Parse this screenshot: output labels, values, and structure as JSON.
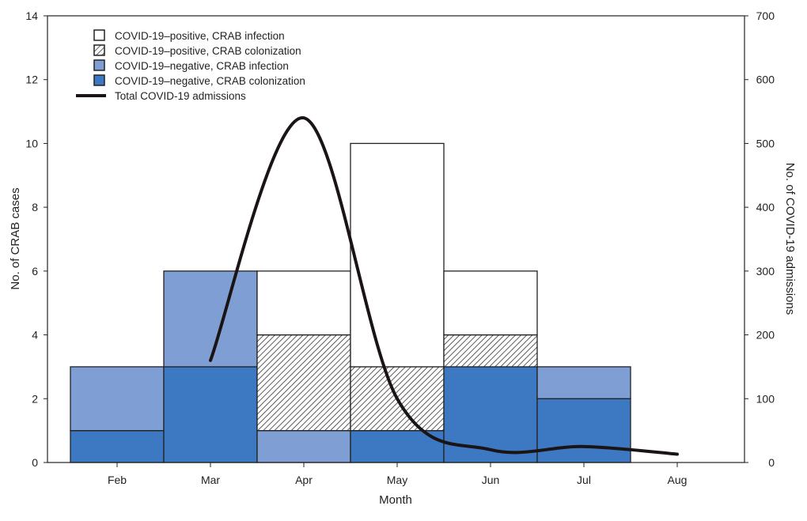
{
  "chart_data": {
    "type": "bar",
    "stacked": true,
    "categories": [
      "Feb",
      "Mar",
      "Apr",
      "May",
      "Jun",
      "Jul",
      "Aug"
    ],
    "xlabel": "Month",
    "ylabel": "No. of CRAB cases",
    "y2label": "No. of COVID-19 admissions",
    "ylim": [
      0,
      14
    ],
    "yticks": [
      0,
      2,
      4,
      6,
      8,
      10,
      12,
      14
    ],
    "y2lim": [
      0,
      700
    ],
    "y2ticks": [
      0,
      100,
      200,
      300,
      400,
      500,
      600,
      700
    ],
    "legend_position": "top-left",
    "series": [
      {
        "name": "COVID-19–negative, CRAB colonization",
        "values": [
          1,
          3,
          0,
          1,
          3,
          2,
          0
        ],
        "color": "#3d78c2",
        "fill": "solid"
      },
      {
        "name": "COVID-19–negative, CRAB infection",
        "values": [
          2,
          3,
          1,
          0,
          0,
          1,
          0
        ],
        "color": "#7f9fd4",
        "fill": "solid"
      },
      {
        "name": "COVID-19–positive, CRAB colonization",
        "values": [
          0,
          0,
          3,
          2,
          1,
          0,
          0
        ],
        "color": "#ffffff",
        "fill": "hatch"
      },
      {
        "name": "COVID-19–positive, CRAB infection",
        "values": [
          0,
          0,
          2,
          7,
          2,
          0,
          0
        ],
        "color": "#ffffff",
        "fill": "solid"
      }
    ],
    "line": {
      "name": "Total COVID-19 admissions",
      "axis": "right",
      "color": "#1a1414",
      "x": [
        "Mar",
        "Apr",
        "May",
        "Jun",
        "Jul",
        "Aug"
      ],
      "values": [
        160,
        540,
        100,
        20,
        25,
        13
      ]
    },
    "legend_order": [
      3,
      2,
      1,
      0
    ]
  }
}
